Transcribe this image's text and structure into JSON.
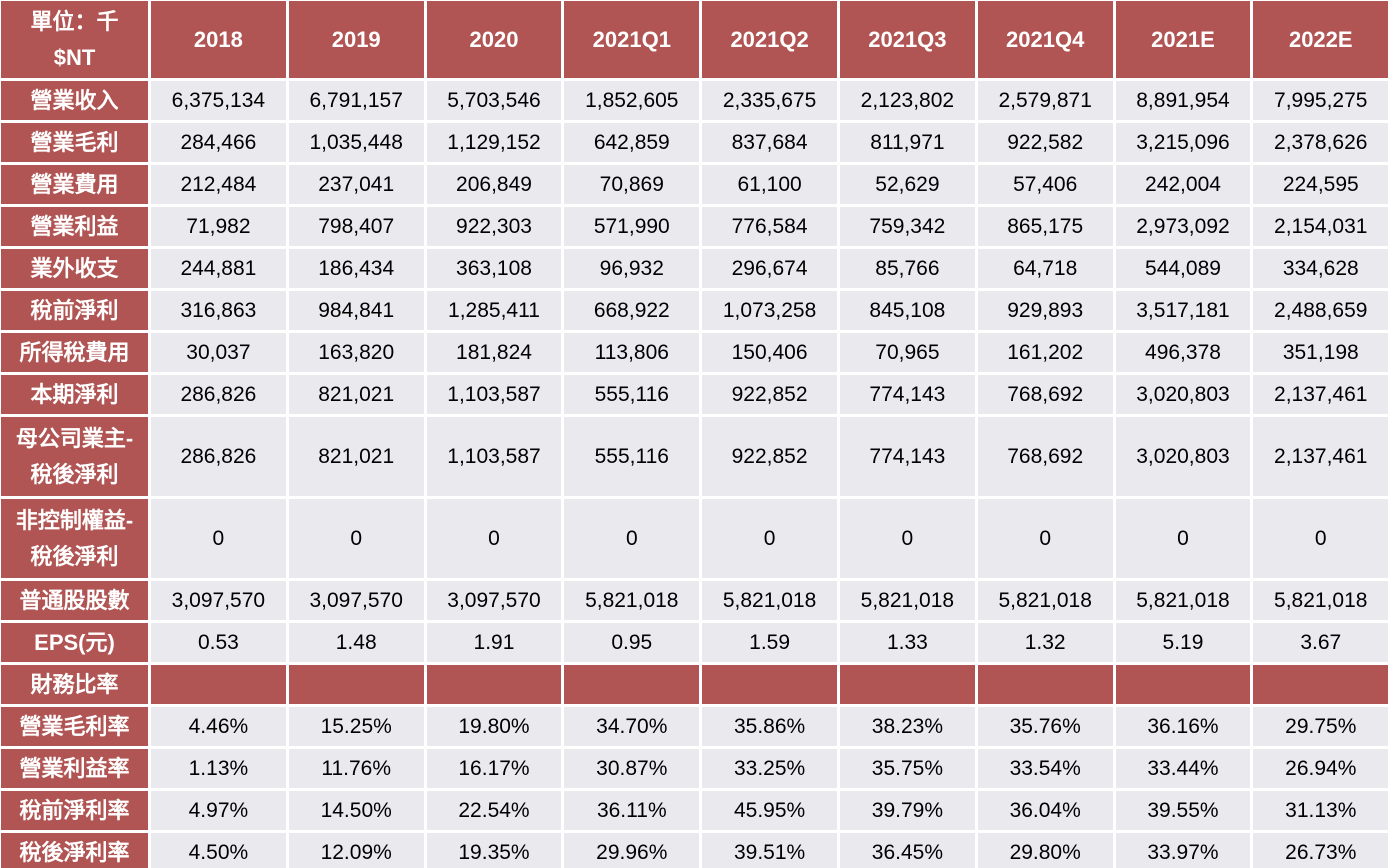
{
  "table": {
    "header": [
      "單位：千 $NT",
      "2018",
      "2019",
      "2020",
      "2021Q1",
      "2021Q2",
      "2021Q3",
      "2021Q4",
      "2021E",
      "2022E"
    ],
    "rows": [
      [
        "營業收入",
        "6,375,134",
        "6,791,157",
        "5,703,546",
        "1,852,605",
        "2,335,675",
        "2,123,802",
        "2,579,871",
        "8,891,954",
        "7,995,275"
      ],
      [
        "營業毛利",
        "284,466",
        "1,035,448",
        "1,129,152",
        "642,859",
        "837,684",
        "811,971",
        "922,582",
        "3,215,096",
        "2,378,626"
      ],
      [
        "營業費用",
        "212,484",
        "237,041",
        "206,849",
        "70,869",
        "61,100",
        "52,629",
        "57,406",
        "242,004",
        "224,595"
      ],
      [
        "營業利益",
        "71,982",
        "798,407",
        "922,303",
        "571,990",
        "776,584",
        "759,342",
        "865,175",
        "2,973,092",
        "2,154,031"
      ],
      [
        "業外收支",
        "244,881",
        "186,434",
        "363,108",
        "96,932",
        "296,674",
        "85,766",
        "64,718",
        "544,089",
        "334,628"
      ],
      [
        "稅前淨利",
        "316,863",
        "984,841",
        "1,285,411",
        "668,922",
        "1,073,258",
        "845,108",
        "929,893",
        "3,517,181",
        "2,488,659"
      ],
      [
        "所得稅費用",
        "30,037",
        "163,820",
        "181,824",
        "113,806",
        "150,406",
        "70,965",
        "161,202",
        "496,378",
        "351,198"
      ],
      [
        "本期淨利",
        "286,826",
        "821,021",
        "1,103,587",
        "555,116",
        "922,852",
        "774,143",
        "768,692",
        "3,020,803",
        "2,137,461"
      ],
      [
        "母公司業主-稅後淨利",
        "286,826",
        "821,021",
        "1,103,587",
        "555,116",
        "922,852",
        "774,143",
        "768,692",
        "3,020,803",
        "2,137,461"
      ],
      [
        "非控制權益-稅後淨利",
        "0",
        "0",
        "0",
        "0",
        "0",
        "0",
        "0",
        "0",
        "0"
      ],
      [
        "普通股股數",
        "3,097,570",
        "3,097,570",
        "3,097,570",
        "5,821,018",
        "5,821,018",
        "5,821,018",
        "5,821,018",
        "5,821,018",
        "5,821,018"
      ],
      [
        "EPS(元)",
        "0.53",
        "1.48",
        "1.91",
        "0.95",
        "1.59",
        "1.33",
        "1.32",
        "5.19",
        "3.67"
      ],
      [
        "財務比率"
      ],
      [
        "營業毛利率",
        "4.46%",
        "15.25%",
        "19.80%",
        "34.70%",
        "35.86%",
        "38.23%",
        "35.76%",
        "36.16%",
        "29.75%"
      ],
      [
        "營業利益率",
        "1.13%",
        "11.76%",
        "16.17%",
        "30.87%",
        "33.25%",
        "35.75%",
        "33.54%",
        "33.44%",
        "26.94%"
      ],
      [
        "稅前淨利率",
        "4.97%",
        "14.50%",
        "22.54%",
        "36.11%",
        "45.95%",
        "39.79%",
        "36.04%",
        "39.55%",
        "31.13%"
      ],
      [
        "稅後淨利率",
        "4.50%",
        "12.09%",
        "19.35%",
        "29.96%",
        "39.51%",
        "36.45%",
        "29.80%",
        "33.97%",
        "26.73%"
      ]
    ]
  }
}
